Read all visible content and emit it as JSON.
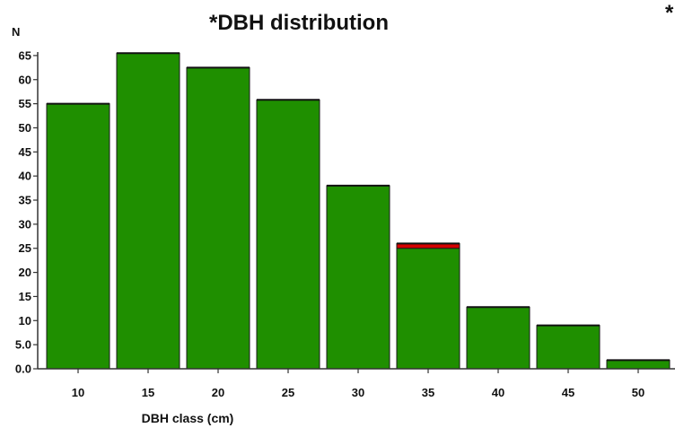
{
  "chart_data": {
    "type": "bar",
    "title": "*DBH distribution",
    "right_edge_text": "*",
    "xlabel": "DBH class (cm)",
    "ylabel": "N",
    "categories": [
      "10",
      "15",
      "20",
      "25",
      "30",
      "35",
      "40",
      "45",
      "50"
    ],
    "series": [
      {
        "values": [
          55,
          65.5,
          62.5,
          55.8,
          38,
          25,
          12.8,
          9,
          1.8
        ],
        "color": "#1f8f00"
      },
      {
        "values": [
          0,
          0,
          0,
          0,
          0,
          1,
          0,
          0,
          0
        ],
        "color": "#d40000"
      }
    ],
    "ylim": [
      0,
      67
    ],
    "yticks": [
      "0.0",
      "5.0",
      "10",
      "15",
      "20",
      "25",
      "30",
      "35",
      "40",
      "45",
      "50",
      "55",
      "60",
      "65"
    ],
    "grid": false,
    "legend": "none"
  }
}
